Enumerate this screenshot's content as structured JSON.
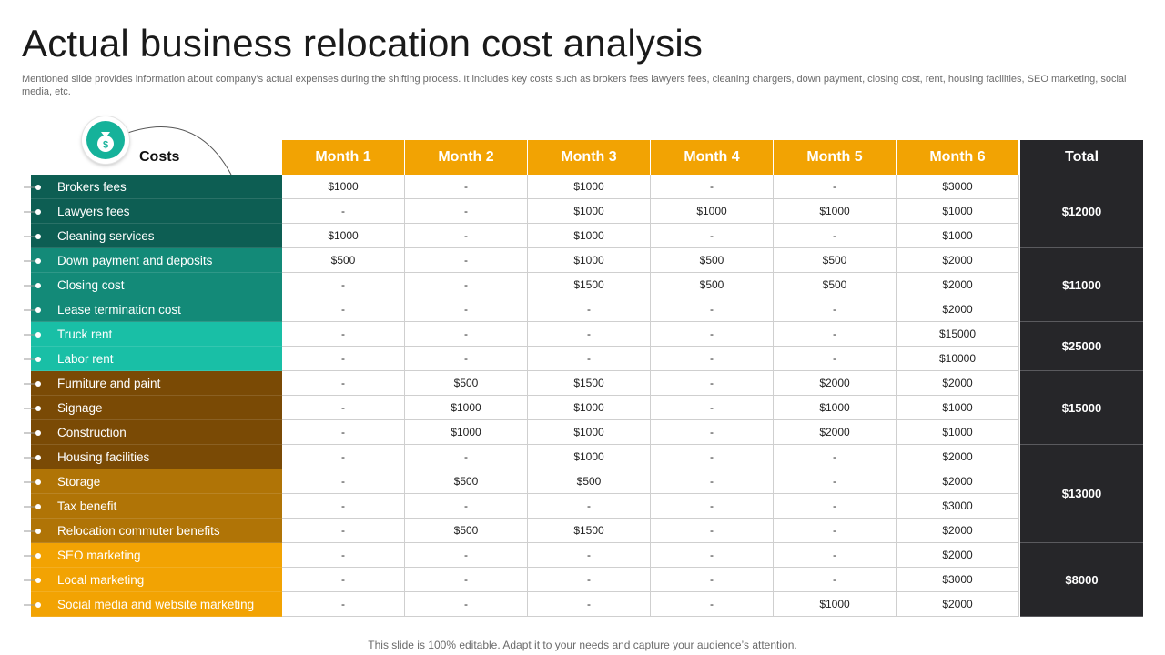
{
  "title": "Actual business relocation cost analysis",
  "subtitle": "Mentioned slide provides information about company’s actual expenses during the shifting process. It includes key costs such as brokers fees lawyers fees, cleaning chargers, down payment, closing cost, rent, housing facilities, SEO marketing, social media, etc.",
  "costs_label": "Costs",
  "icon": "money-bag-icon",
  "headers": [
    "Month 1",
    "Month 2",
    "Month 3",
    "Month 4",
    "Month 5",
    "Month 6"
  ],
  "total_header": "Total",
  "colors": {
    "month_header": "#f2a303",
    "total_bg": "#262629",
    "accent_teal": "#15b29a"
  },
  "rows": [
    {
      "label": "Brokers fees",
      "color": "#0d5e53",
      "values": [
        "$1000",
        "-",
        "$1000",
        "-",
        "-",
        "$3000"
      ]
    },
    {
      "label": "Lawyers fees",
      "color": "#0d5e53",
      "values": [
        "-",
        "-",
        "$1000",
        "$1000",
        "$1000",
        "$1000"
      ]
    },
    {
      "label": "Cleaning services",
      "color": "#0d5e53",
      "values": [
        "$1000",
        "-",
        "$1000",
        "-",
        "-",
        "$1000"
      ]
    },
    {
      "label": "Down payment and deposits",
      "color": "#138a78",
      "values": [
        "$500",
        "-",
        "$1000",
        "$500",
        "$500",
        "$2000"
      ]
    },
    {
      "label": "Closing cost",
      "color": "#138a78",
      "values": [
        "-",
        "-",
        "$1500",
        "$500",
        "$500",
        "$2000"
      ]
    },
    {
      "label": "Lease termination cost",
      "color": "#138a78",
      "values": [
        "-",
        "-",
        "-",
        "-",
        "-",
        "$2000"
      ]
    },
    {
      "label": "Truck rent",
      "color": "#19bfa6",
      "values": [
        "-",
        "-",
        "-",
        "-",
        "-",
        "$15000"
      ]
    },
    {
      "label": "Labor rent",
      "color": "#19bfa6",
      "values": [
        "-",
        "-",
        "-",
        "-",
        "-",
        "$10000"
      ]
    },
    {
      "label": "Furniture and paint",
      "color": "#7a4a05",
      "values": [
        "-",
        "$500",
        "$1500",
        "-",
        "$2000",
        "$2000"
      ]
    },
    {
      "label": "Signage",
      "color": "#7a4a05",
      "values": [
        "-",
        "$1000",
        "$1000",
        "-",
        "$1000",
        "$1000"
      ]
    },
    {
      "label": "Construction",
      "color": "#7a4a05",
      "values": [
        "-",
        "$1000",
        "$1000",
        "-",
        "$2000",
        "$1000"
      ]
    },
    {
      "label": "Housing facilities",
      "color": "#7a4a05",
      "values": [
        "-",
        "-",
        "$1000",
        "-",
        "-",
        "$2000"
      ]
    },
    {
      "label": "Storage",
      "color": "#b07406",
      "values": [
        "-",
        "$500",
        "$500",
        "-",
        "-",
        "$2000"
      ]
    },
    {
      "label": "Tax benefit",
      "color": "#b07406",
      "values": [
        "-",
        "-",
        "-",
        "-",
        "-",
        "$3000"
      ]
    },
    {
      "label": "Relocation commuter benefits",
      "color": "#b07406",
      "values": [
        "-",
        "$500",
        "$1500",
        "-",
        "-",
        "$2000"
      ]
    },
    {
      "label": "SEO marketing",
      "color": "#f2a303",
      "values": [
        "-",
        "-",
        "-",
        "-",
        "-",
        "$2000"
      ]
    },
    {
      "label": "Local marketing",
      "color": "#f2a303",
      "values": [
        "-",
        "-",
        "-",
        "-",
        "-",
        "$3000"
      ]
    },
    {
      "label": "Social media and website marketing",
      "color": "#f2a303",
      "values": [
        "-",
        "-",
        "-",
        "-",
        "$1000",
        "$2000"
      ]
    }
  ],
  "totals": [
    {
      "value": "$12000",
      "row_start": 0,
      "row_count": 3
    },
    {
      "value": "$11000",
      "row_start": 3,
      "row_count": 3
    },
    {
      "value": "$25000",
      "row_start": 6,
      "row_count": 2
    },
    {
      "value": "$15000",
      "row_start": 8,
      "row_count": 3
    },
    {
      "value": "$13000",
      "row_start": 11,
      "row_count": 4
    },
    {
      "value": "$8000",
      "row_start": 15,
      "row_count": 3
    }
  ],
  "footer": "This slide is 100% editable. Adapt it to your needs and capture your audience’s attention."
}
